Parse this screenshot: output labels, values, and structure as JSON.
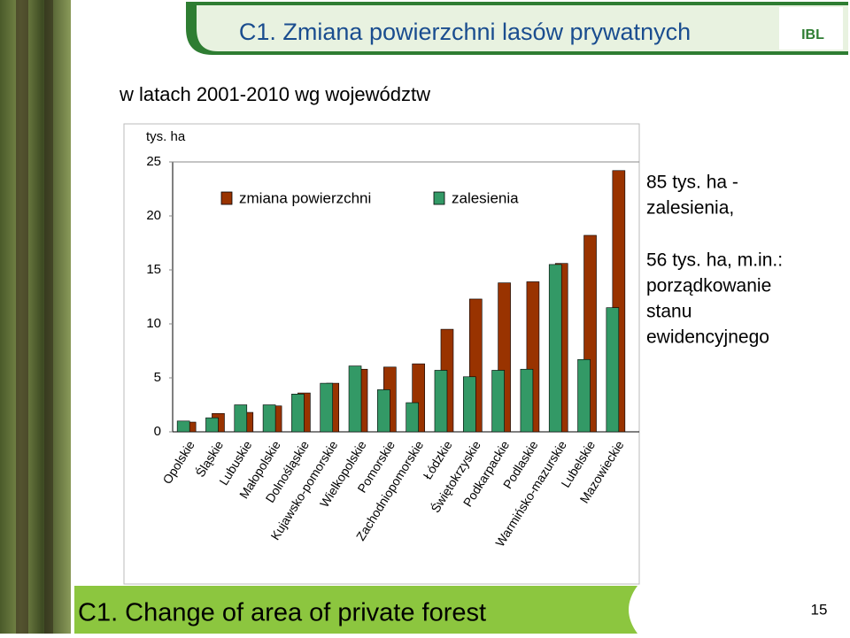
{
  "slide": {
    "title": "C1. Zmiana powierzchni lasów prywatnych",
    "subtitle": "w latach 2001-2010 wg województw",
    "logo": "IBL",
    "notes": [
      [
        "85 tys. ha -",
        "zalesienia,"
      ],
      [
        "56 tys. ha, m.in.:",
        "porządkowanie",
        "stanu",
        "ewidencyjnego"
      ]
    ],
    "footer": "C1. Change of area of private forest",
    "page_number": "15"
  },
  "chart_data": {
    "type": "bar",
    "y_label": "tys. ha",
    "categories": [
      "Opolskie",
      "Śląskie",
      "Lubuskie",
      "Małopolskie",
      "Dolnośląskie",
      "Kujawsko-pomorskie",
      "Wielkopolskie",
      "Pomorskie",
      "Zachodniopomorskie",
      "Łódzkie",
      "Świętokrzyskie",
      "Podkarpackie",
      "Podlaskie",
      "Warmińsko-mazurskie",
      "Lubelskie",
      "Mazowieckie"
    ],
    "series": [
      {
        "name": "zmiana powierzchni",
        "color": "#993300",
        "values": [
          0.9,
          1.7,
          1.8,
          2.4,
          3.6,
          4.5,
          5.8,
          6.0,
          6.3,
          9.5,
          12.3,
          13.8,
          13.9,
          15.6,
          18.2,
          24.2
        ]
      },
      {
        "name": "zalesienia",
        "color": "#339966",
        "values": [
          1.0,
          1.3,
          2.5,
          2.5,
          3.5,
          4.5,
          6.1,
          3.9,
          2.7,
          5.7,
          5.1,
          5.7,
          5.8,
          15.5,
          6.7,
          11.5
        ]
      }
    ],
    "ylim": [
      0,
      25
    ],
    "yticks": [
      0,
      5,
      10,
      15,
      20,
      25
    ],
    "grid": false
  }
}
